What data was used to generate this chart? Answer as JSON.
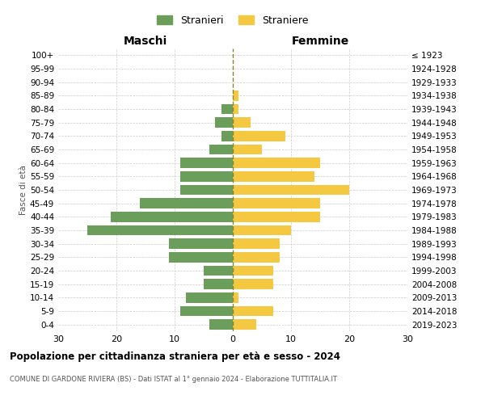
{
  "age_groups": [
    "0-4",
    "5-9",
    "10-14",
    "15-19",
    "20-24",
    "25-29",
    "30-34",
    "35-39",
    "40-44",
    "45-49",
    "50-54",
    "55-59",
    "60-64",
    "65-69",
    "70-74",
    "75-79",
    "80-84",
    "85-89",
    "90-94",
    "95-99",
    "100+"
  ],
  "birth_years": [
    "2019-2023",
    "2014-2018",
    "2009-2013",
    "2004-2008",
    "1999-2003",
    "1994-1998",
    "1989-1993",
    "1984-1988",
    "1979-1983",
    "1974-1978",
    "1969-1973",
    "1964-1968",
    "1959-1963",
    "1954-1958",
    "1949-1953",
    "1944-1948",
    "1939-1943",
    "1934-1938",
    "1929-1933",
    "1924-1928",
    "≤ 1923"
  ],
  "males": [
    4,
    9,
    8,
    5,
    5,
    11,
    11,
    25,
    21,
    16,
    9,
    9,
    9,
    4,
    2,
    3,
    2,
    0,
    0,
    0,
    0
  ],
  "females": [
    4,
    7,
    1,
    7,
    7,
    8,
    8,
    10,
    15,
    15,
    20,
    14,
    15,
    5,
    9,
    3,
    1,
    1,
    0,
    0,
    0
  ],
  "male_color": "#6a9e5a",
  "female_color": "#f5c842",
  "background_color": "#ffffff",
  "grid_color": "#cccccc",
  "dashed_line_color": "#888833",
  "title": "Popolazione per cittadinanza straniera per età e sesso - 2024",
  "subtitle": "COMUNE DI GARDONE RIVIERA (BS) - Dati ISTAT al 1° gennaio 2024 - Elaborazione TUTTITALIA.IT",
  "left_label": "Maschi",
  "right_label": "Femmine",
  "ylabel": "Fasce di età",
  "legend_male": "Stranieri",
  "legend_female": "Straniere",
  "xlim": 30,
  "bar_height": 0.75
}
